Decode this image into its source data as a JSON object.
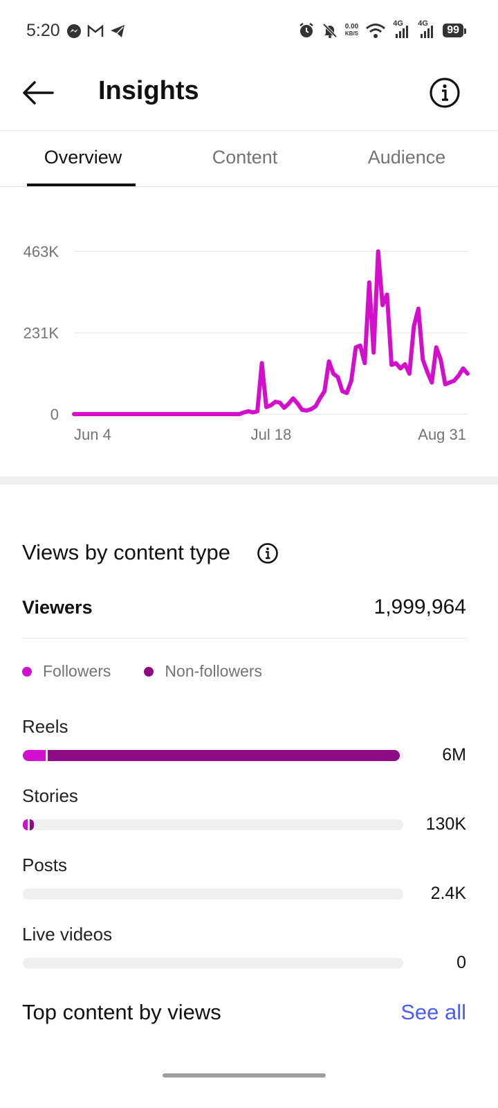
{
  "status_bar": {
    "time": "5:20",
    "left_icons": [
      "messenger-icon",
      "gmail-icon",
      "telegram-icon"
    ],
    "net_speed_value": "0.00",
    "net_speed_unit": "KB/S",
    "network_labels": [
      "4G",
      "4G"
    ],
    "battery": "99"
  },
  "header": {
    "title": "Insights"
  },
  "tabs": [
    {
      "label": "Overview",
      "active": true
    },
    {
      "label": "Content",
      "active": false
    },
    {
      "label": "Audience",
      "active": false
    }
  ],
  "chart_data": {
    "type": "line",
    "y_ticks": [
      "463K",
      "231K",
      "0"
    ],
    "ylim": [
      0,
      463000
    ],
    "x_ticks": [
      "Jun 4",
      "Jul 18",
      "Aug 31"
    ],
    "x": [
      "Jun 4",
      "Jun 5",
      "Jun 6",
      "Jun 7",
      "Jun 8",
      "Jun 9",
      "Jun 10",
      "Jun 11",
      "Jun 12",
      "Jun 13",
      "Jun 14",
      "Jun 15",
      "Jun 16",
      "Jun 17",
      "Jun 18",
      "Jun 19",
      "Jun 20",
      "Jun 21",
      "Jun 22",
      "Jun 23",
      "Jun 24",
      "Jun 25",
      "Jun 26",
      "Jun 27",
      "Jun 28",
      "Jun 29",
      "Jun 30",
      "Jul 1",
      "Jul 2",
      "Jul 3",
      "Jul 4",
      "Jul 5",
      "Jul 6",
      "Jul 7",
      "Jul 8",
      "Jul 9",
      "Jul 10",
      "Jul 11",
      "Jul 12",
      "Jul 13",
      "Jul 14",
      "Jul 15",
      "Jul 16",
      "Jul 17",
      "Jul 18",
      "Jul 19",
      "Jul 20",
      "Jul 21",
      "Jul 22",
      "Jul 23",
      "Jul 24",
      "Jul 25",
      "Jul 26",
      "Jul 27",
      "Jul 28",
      "Jul 29",
      "Jul 30",
      "Jul 31",
      "Aug 1",
      "Aug 2",
      "Aug 3",
      "Aug 4",
      "Aug 5",
      "Aug 6",
      "Aug 7",
      "Aug 8",
      "Aug 9",
      "Aug 10",
      "Aug 11",
      "Aug 12",
      "Aug 13",
      "Aug 14",
      "Aug 15",
      "Aug 16",
      "Aug 17",
      "Aug 18",
      "Aug 19",
      "Aug 20",
      "Aug 21",
      "Aug 22",
      "Aug 23",
      "Aug 24",
      "Aug 25",
      "Aug 26",
      "Aug 27",
      "Aug 28",
      "Aug 29",
      "Aug 30",
      "Aug 31"
    ],
    "series": [
      {
        "color": "#d40fcc",
        "values": [
          0,
          0,
          0,
          0,
          0,
          0,
          0,
          0,
          0,
          0,
          0,
          0,
          0,
          0,
          0,
          0,
          0,
          0,
          0,
          0,
          0,
          0,
          0,
          0,
          0,
          0,
          0,
          0,
          0,
          0,
          0,
          0,
          0,
          0,
          0,
          0,
          0,
          0,
          5000,
          8000,
          5000,
          8000,
          145000,
          20000,
          25000,
          35000,
          33000,
          18000,
          30000,
          45000,
          30000,
          12000,
          10000,
          14000,
          22000,
          45000,
          65000,
          150000,
          115000,
          105000,
          65000,
          60000,
          95000,
          190000,
          195000,
          145000,
          375000,
          175000,
          463000,
          310000,
          340000,
          140000,
          145000,
          130000,
          142000,
          115000,
          250000,
          300000,
          155000,
          120000,
          90000,
          190000,
          155000,
          85000,
          90000,
          95000,
          110000,
          130000,
          115000
        ]
      }
    ]
  },
  "views_section": {
    "title": "Views by content type",
    "viewers_label": "Viewers",
    "viewers_value": "1,999,964",
    "legend": [
      {
        "label": "Followers",
        "color": "#d10fcc"
      },
      {
        "label": "Non-followers",
        "color": "#8e0a84"
      }
    ],
    "bars": [
      {
        "label": "Reels",
        "value": "6M",
        "followers_fraction": 0.06,
        "nonfollowers_fraction": 0.925
      },
      {
        "label": "Stories",
        "value": "130K",
        "followers_fraction": 0.012,
        "nonfollowers_fraction": 0.012
      },
      {
        "label": "Posts",
        "value": "2.4K",
        "followers_fraction": 0,
        "nonfollowers_fraction": 0
      },
      {
        "label": "Live videos",
        "value": "0",
        "followers_fraction": 0,
        "nonfollowers_fraction": 0
      }
    ]
  },
  "top_content": {
    "title": "Top content by views",
    "see_all": "See all"
  }
}
